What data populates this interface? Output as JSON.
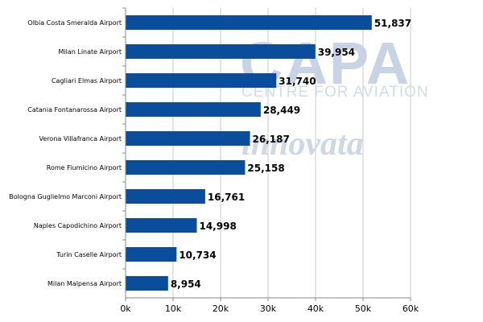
{
  "chart_data": {
    "type": "bar",
    "orientation": "horizontal",
    "categories": [
      "Olbia Costa Smeralda Airport",
      "Milan Linate Airport",
      "Cagliari Elmas Airport",
      "Catania Fontanarossa Airport",
      "Verona Villafranca Airport",
      "Rome Fiumicino Airport",
      "Bologna Guglielmo Marconi Airport",
      "Naples Capodichino Airport",
      "Turin Caselle Airport",
      "Milan Malpensa Airport"
    ],
    "values": [
      51837,
      39954,
      31740,
      28449,
      26187,
      25158,
      16761,
      14998,
      10734,
      8954
    ],
    "data_labels": [
      "51,837",
      "39,954",
      "31,740",
      "28,449",
      "26,187",
      "25,158",
      "16,761",
      "14,998",
      "10,734",
      "8,954"
    ],
    "x_ticks": [
      0,
      10000,
      20000,
      30000,
      40000,
      50000,
      60000
    ],
    "x_tick_labels": [
      "0k",
      "10k",
      "20k",
      "30k",
      "40k",
      "50k",
      "60k"
    ],
    "xlim": [
      0,
      60000
    ],
    "grid": true,
    "bar_color": "#0a4d9c",
    "title": "",
    "xlabel": "",
    "ylabel": ""
  },
  "watermark": {
    "brand": "CAPA",
    "tagline": "CENTRE FOR AVIATION",
    "partner": "innovata"
  }
}
